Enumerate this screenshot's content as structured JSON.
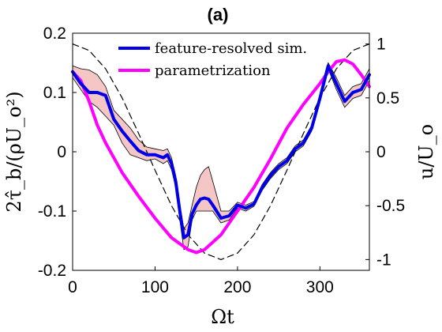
{
  "chart_data": {
    "type": "line",
    "title": "(a)",
    "xlabel": "Ωt",
    "ylabel": "2τ̂_b/(ρU_o²)",
    "ylabel_right": "u/U_o",
    "xlim": [
      0,
      360
    ],
    "ylim": [
      -0.2,
      0.2
    ],
    "ylim_right": [
      -1.1,
      1.1
    ],
    "xticks": [
      0,
      100,
      200,
      300
    ],
    "xtick_labels": [
      "0",
      "100",
      "200",
      "300"
    ],
    "yticks": [
      -0.2,
      -0.1,
      0,
      0.1,
      0.2
    ],
    "ytick_labels": [
      "-0.2",
      "-0.1",
      "0",
      "0.1",
      "0.2"
    ],
    "yticks_right": [
      -1,
      -0.5,
      0,
      0.5,
      1
    ],
    "ytick_labels_right": [
      "-1",
      "-0.5",
      "0",
      "0.5",
      "1"
    ],
    "grid": false,
    "legend_position": "top-center",
    "series": [
      {
        "name": "feature-resolved sim.",
        "color": "#0000e6",
        "axis": "left",
        "x": [
          0,
          10,
          20,
          30,
          40,
          50,
          60,
          70,
          80,
          90,
          100,
          110,
          115,
          120,
          125,
          130,
          135,
          140,
          145,
          150,
          155,
          160,
          165,
          170,
          180,
          190,
          200,
          210,
          220,
          230,
          240,
          250,
          260,
          270,
          280,
          290,
          300,
          310,
          320,
          330,
          340,
          350,
          360
        ],
        "values": [
          0.135,
          0.115,
          0.1,
          0.1,
          0.095,
          0.055,
          0.035,
          0.018,
          0.002,
          -0.005,
          -0.005,
          -0.01,
          -0.005,
          -0.02,
          -0.05,
          -0.1,
          -0.145,
          -0.14,
          -0.105,
          -0.09,
          -0.08,
          -0.078,
          -0.08,
          -0.09,
          -0.112,
          -0.108,
          -0.09,
          -0.095,
          -0.088,
          -0.06,
          -0.04,
          -0.025,
          -0.015,
          0.005,
          0.015,
          0.04,
          0.09,
          0.145,
          0.115,
          0.085,
          0.1,
          0.105,
          0.13
        ]
      },
      {
        "name": "parametrization",
        "color": "#ff00ff",
        "axis": "left",
        "x": [
          0,
          10,
          20,
          30,
          40,
          60,
          80,
          100,
          120,
          140,
          150,
          160,
          180,
          200,
          220,
          240,
          260,
          280,
          300,
          310,
          320,
          330,
          340,
          350,
          360
        ],
        "values": [
          0.135,
          0.12,
          0.085,
          0.045,
          0.015,
          -0.035,
          -0.075,
          -0.112,
          -0.145,
          -0.165,
          -0.17,
          -0.165,
          -0.14,
          -0.1,
          -0.06,
          -0.012,
          0.04,
          0.08,
          0.115,
          0.135,
          0.152,
          0.155,
          0.148,
          0.13,
          0.11
        ]
      },
      {
        "name": "",
        "color": "#000000",
        "axis": "right",
        "style": "dashed",
        "x": [
          0,
          20,
          40,
          60,
          80,
          100,
          120,
          140,
          160,
          180,
          200,
          220,
          240,
          260,
          280,
          300,
          320,
          340,
          360
        ],
        "values": [
          1.0,
          0.94,
          0.77,
          0.5,
          0.17,
          -0.17,
          -0.5,
          -0.77,
          -0.94,
          -1.0,
          -0.94,
          -0.77,
          -0.5,
          -0.17,
          0.17,
          0.5,
          0.77,
          0.94,
          1.0
        ]
      }
    ],
    "band": {
      "color": "#f5c6c6",
      "edge_color": "#000000",
      "axis": "left",
      "x": [
        0,
        10,
        20,
        30,
        40,
        50,
        60,
        70,
        80,
        90,
        100,
        110,
        115,
        120,
        125,
        130,
        135,
        140,
        145,
        150,
        155,
        160,
        165,
        170,
        180,
        190,
        200,
        210,
        220,
        230,
        240,
        250,
        260,
        270,
        280,
        290,
        300,
        310,
        320,
        330,
        340,
        350,
        360
      ],
      "lower": [
        0.125,
        0.105,
        0.085,
        0.075,
        0.06,
        0.045,
        0.015,
        -0.005,
        -0.01,
        -0.015,
        -0.012,
        -0.02,
        -0.015,
        -0.03,
        -0.06,
        -0.115,
        -0.165,
        -0.16,
        -0.115,
        -0.1,
        -0.1,
        -0.1,
        -0.1,
        -0.1,
        -0.12,
        -0.115,
        -0.095,
        -0.1,
        -0.092,
        -0.065,
        -0.045,
        -0.03,
        -0.02,
        0,
        0.01,
        0.035,
        0.085,
        0.14,
        0.105,
        0.075,
        0.09,
        0.095,
        0.12
      ],
      "upper": [
        0.145,
        0.14,
        0.138,
        0.13,
        0.11,
        0.07,
        0.055,
        0.04,
        0.02,
        0.008,
        0.005,
        0.002,
        0.005,
        -0.01,
        -0.04,
        -0.09,
        -0.13,
        -0.12,
        -0.09,
        -0.06,
        -0.04,
        -0.03,
        -0.025,
        -0.05,
        -0.1,
        -0.1,
        -0.085,
        -0.09,
        -0.084,
        -0.055,
        -0.035,
        -0.02,
        -0.01,
        0.01,
        0.02,
        0.045,
        0.095,
        0.15,
        0.125,
        0.095,
        0.11,
        0.115,
        0.14
      ]
    }
  }
}
